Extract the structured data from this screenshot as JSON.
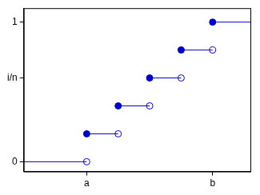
{
  "chart_data": {
    "type": "step",
    "x": [
      -1,
      1,
      2,
      3,
      4,
      5
    ],
    "values": [
      0,
      0.2,
      0.4,
      0.6,
      0.8,
      1
    ],
    "color": "#0000cc",
    "xlim": [
      -1,
      6.2
    ],
    "xticks": [
      {
        "value": 1,
        "label": "a"
      },
      {
        "value": 5,
        "label": "b"
      }
    ],
    "ylim": [
      -0.07,
      1.1
    ],
    "yticks": [
      0,
      {
        "value": 0.6,
        "label": "i/n"
      },
      1
    ],
    "grid": false
  }
}
